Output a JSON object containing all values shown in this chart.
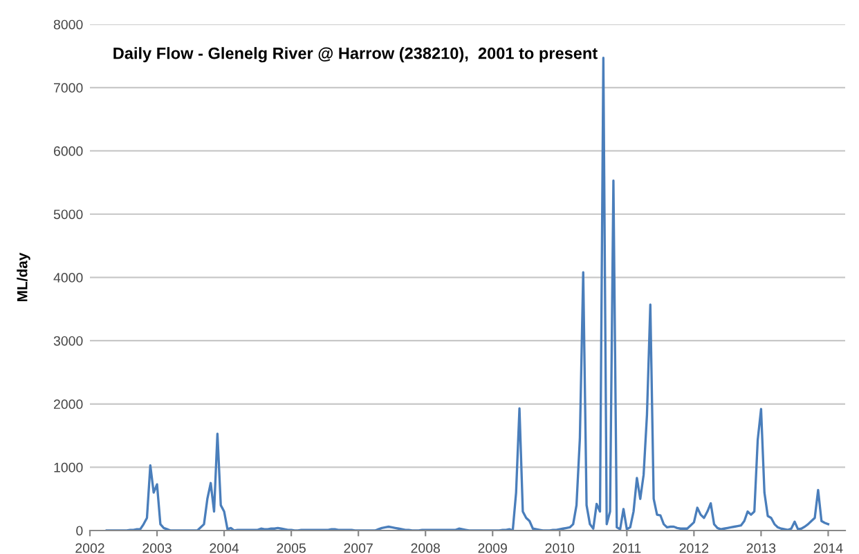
{
  "chart_data": {
    "type": "line",
    "title": "Daily Flow - Glenelg River @ Harrow (238210),  2001 to present",
    "ylabel": "ML/day",
    "categories": [
      "2002",
      null,
      null,
      null,
      null,
      null,
      null,
      null,
      null,
      null,
      null,
      null,
      null,
      null,
      null,
      null,
      null,
      null,
      null,
      null,
      "2003",
      null,
      null,
      null,
      null,
      null,
      null,
      null,
      null,
      null,
      null,
      null,
      null,
      null,
      null,
      null,
      null,
      null,
      null,
      null,
      "2004",
      null,
      null,
      null,
      null,
      null,
      null,
      null,
      null,
      null,
      null,
      null,
      null,
      null,
      null,
      null,
      null,
      null,
      null,
      null,
      "2005",
      null,
      null,
      null,
      null,
      null,
      null,
      null,
      null,
      null,
      null,
      null,
      null,
      null,
      null,
      null,
      null,
      null,
      null,
      null,
      "2007",
      null,
      null,
      null,
      null,
      null,
      null,
      null,
      null,
      null,
      null,
      null,
      null,
      null,
      null,
      null,
      null,
      null,
      null,
      null,
      "2008",
      null,
      null,
      null,
      null,
      null,
      null,
      null,
      null,
      null,
      null,
      null,
      null,
      null,
      null,
      null,
      null,
      null,
      null,
      null,
      "2009",
      null,
      null,
      null,
      null,
      null,
      null,
      null,
      null,
      null,
      null,
      null,
      null,
      null,
      null,
      null,
      null,
      null,
      null,
      null,
      "2010",
      null,
      null,
      null,
      null,
      null,
      null,
      null,
      null,
      null,
      null,
      null,
      null,
      null,
      null,
      null,
      null,
      null,
      null,
      null,
      "2011",
      null,
      null,
      null,
      null,
      null,
      null,
      null,
      null,
      null,
      null,
      null,
      null,
      null,
      null,
      null,
      null,
      null,
      null,
      null,
      "2012",
      null,
      null,
      null,
      null,
      null,
      null,
      null,
      null,
      null,
      null,
      null,
      null,
      null,
      null,
      null,
      null,
      null,
      null,
      null,
      "2013",
      null,
      null,
      null,
      null,
      null,
      null,
      null,
      null,
      null,
      null,
      null,
      null,
      null,
      null,
      null,
      null,
      null,
      null,
      null,
      "2014"
    ],
    "series": [
      {
        "color": "#4a7ebb",
        "values": [
          null,
          null,
          null,
          null,
          null,
          0,
          0,
          0,
          0,
          0,
          0,
          0,
          10,
          10,
          20,
          20,
          100,
          200,
          1030,
          600,
          730,
          100,
          40,
          20,
          0,
          0,
          0,
          0,
          0,
          0,
          0,
          0,
          0,
          50,
          100,
          500,
          750,
          300,
          1530,
          400,
          300,
          20,
          40,
          0,
          10,
          10,
          10,
          10,
          10,
          10,
          10,
          30,
          20,
          20,
          30,
          30,
          40,
          30,
          20,
          10,
          10,
          0,
          0,
          10,
          10,
          10,
          10,
          10,
          10,
          10,
          10,
          10,
          20,
          20,
          10,
          10,
          10,
          10,
          10,
          0,
          0,
          0,
          0,
          0,
          0,
          0,
          20,
          40,
          50,
          60,
          50,
          40,
          30,
          20,
          10,
          10,
          0,
          0,
          0,
          10,
          10,
          10,
          10,
          10,
          10,
          10,
          10,
          10,
          10,
          10,
          30,
          20,
          10,
          0,
          0,
          0,
          0,
          0,
          0,
          0,
          0,
          0,
          0,
          10,
          10,
          20,
          0,
          600,
          1930,
          300,
          200,
          150,
          30,
          20,
          10,
          0,
          0,
          0,
          10,
          10,
          20,
          30,
          40,
          50,
          100,
          400,
          1450,
          4080,
          400,
          100,
          30,
          420,
          300,
          7470,
          100,
          300,
          5530,
          50,
          20,
          340,
          20,
          50,
          300,
          830,
          500,
          880,
          1830,
          3570,
          500,
          250,
          240,
          100,
          50,
          60,
          60,
          40,
          30,
          30,
          30,
          80,
          130,
          360,
          250,
          200,
          300,
          430,
          100,
          40,
          20,
          30,
          40,
          50,
          60,
          70,
          80,
          150,
          300,
          250,
          300,
          1430,
          1920,
          600,
          230,
          200,
          100,
          50,
          30,
          20,
          10,
          30,
          140,
          20,
          30,
          60,
          100,
          150,
          200,
          640,
          150,
          120,
          100
        ]
      }
    ],
    "ylim": [
      0,
      8000
    ],
    "yticks": [
      0,
      1000,
      2000,
      3000,
      4000,
      5000,
      6000,
      7000,
      8000
    ],
    "grid": "y",
    "legend": false,
    "marker": "none",
    "line_style": "solid"
  }
}
